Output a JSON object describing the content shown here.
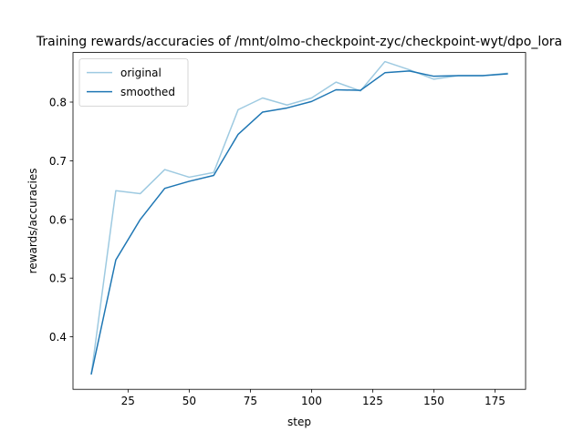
{
  "chart_data": {
    "type": "line",
    "title": "Training rewards/accuracies of /mnt/olmo-checkpoint-zyc/checkpoint-wyt/dpo_lora",
    "xlabel": "step",
    "ylabel": "rewards/accuracies",
    "xlim": [
      2.5,
      187.5
    ],
    "ylim": [
      0.3105,
      0.8845
    ],
    "xticks": [
      25,
      50,
      75,
      100,
      125,
      150,
      175
    ],
    "yticks": [
      0.4,
      0.5,
      0.6,
      0.7,
      0.8
    ],
    "grid": false,
    "legend_position": "top-left",
    "x": [
      10,
      20,
      30,
      40,
      50,
      60,
      70,
      80,
      90,
      100,
      110,
      120,
      130,
      140,
      150,
      160,
      170,
      180
    ],
    "series": [
      {
        "name": "original",
        "color": "#9ecae1",
        "values": [
          0.337,
          0.649,
          0.644,
          0.685,
          0.672,
          0.68,
          0.787,
          0.807,
          0.795,
          0.807,
          0.834,
          0.819,
          0.869,
          0.855,
          0.839,
          0.845,
          0.845,
          0.849
        ]
      },
      {
        "name": "smoothed",
        "color": "#1f77b4",
        "values": [
          0.337,
          0.531,
          0.6,
          0.653,
          0.665,
          0.675,
          0.745,
          0.783,
          0.79,
          0.801,
          0.821,
          0.82,
          0.85,
          0.853,
          0.844,
          0.845,
          0.845,
          0.848
        ]
      }
    ]
  }
}
